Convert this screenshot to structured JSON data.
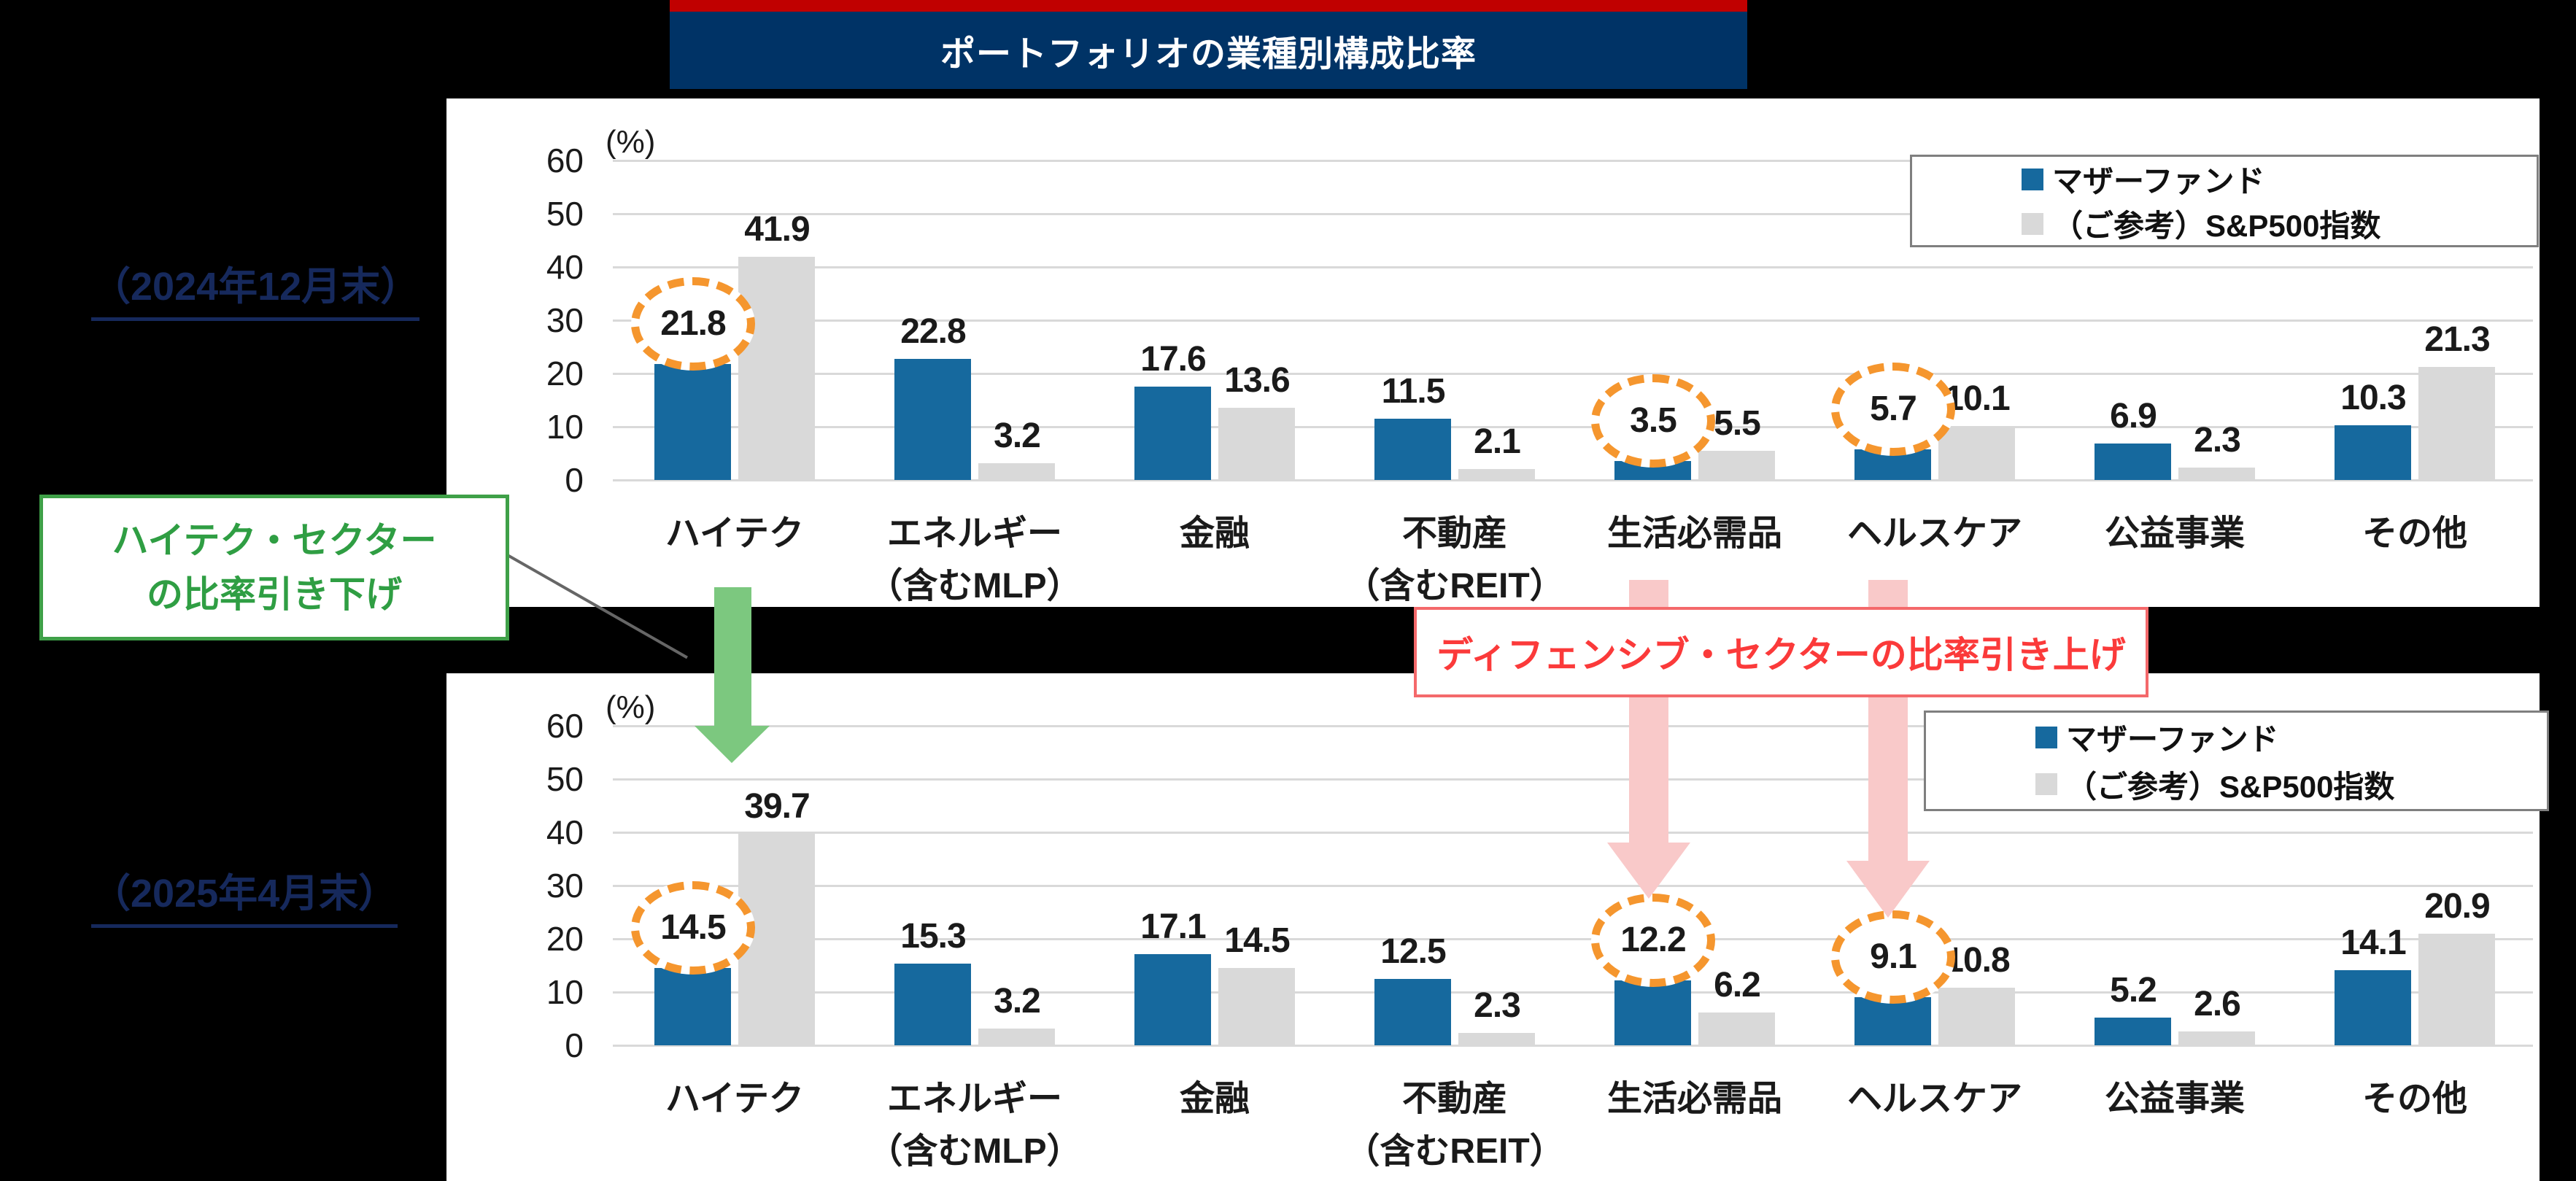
{
  "title": {
    "text": "ポートフォリオの業種別構成比率"
  },
  "y_axis": {
    "unit_label": "(%)",
    "ticks": [
      "60",
      "50",
      "40",
      "30",
      "20",
      "10",
      "0"
    ],
    "ylim": [
      0,
      60
    ],
    "grid": true
  },
  "legend": {
    "position": "top-right",
    "items": [
      {
        "label": "マザーファンド",
        "color": "#16699E"
      },
      {
        "label": "（ご参考）S&P500指数",
        "color": "#D9D9D9"
      }
    ]
  },
  "annotations": {
    "green_box_line1": "ハイテク・セクター",
    "green_box_line2": "の比率引き下げ",
    "pink_box": "ディフェンシブ・セクターの比率引き上げ"
  },
  "chart_data": [
    {
      "type": "bar",
      "period_label": "（2024年12月末）",
      "categories": [
        "ハイテク",
        "エネルギー\n（含むMLP）",
        "金融",
        "不動産\n（含むREIT）",
        "生活必需品",
        "ヘルスケア",
        "公益事業",
        "その他"
      ],
      "series": [
        {
          "name": "マザーファンド",
          "values": [
            21.8,
            22.8,
            17.6,
            11.5,
            3.5,
            5.7,
            6.9,
            10.3
          ]
        },
        {
          "name": "（ご参考）S&P500指数",
          "values": [
            41.9,
            3.2,
            13.6,
            2.1,
            5.5,
            10.1,
            2.3,
            21.3
          ]
        }
      ],
      "circled_category_indices": [
        0,
        4,
        5
      ],
      "xlabel": "",
      "ylabel": "(%)",
      "ylim": [
        0,
        60
      ]
    },
    {
      "type": "bar",
      "period_label": "（2025年4月末）",
      "categories": [
        "ハイテク",
        "エネルギー\n（含むMLP）",
        "金融",
        "不動産\n（含むREIT）",
        "生活必需品",
        "ヘルスケア",
        "公益事業",
        "その他"
      ],
      "series": [
        {
          "name": "マザーファンド",
          "values": [
            14.5,
            15.3,
            17.1,
            12.5,
            12.2,
            9.1,
            5.2,
            14.1
          ]
        },
        {
          "name": "（ご参考）S&P500指数",
          "values": [
            39.7,
            3.2,
            14.5,
            2.3,
            6.2,
            10.8,
            2.6,
            20.9
          ]
        }
      ],
      "circled_category_indices": [
        0,
        4,
        5
      ],
      "xlabel": "",
      "ylabel": "(%)",
      "ylim": [
        0,
        60
      ]
    }
  ],
  "colors": {
    "background": "#000000",
    "title_accent": "#C00000",
    "title_bg": "#003366",
    "title_fg": "#FFFFFF",
    "fund_bar": "#16699E",
    "index_bar": "#D9D9D9",
    "gridline": "#D9D9D9",
    "text": "#1A1A1A",
    "date_text": "#16295C",
    "circle_orange": "#F5962E",
    "green_border": "#3FA048",
    "green_text": "#2F9E43",
    "green_arrow": "#7CC87F",
    "pink_border": "#F4696B",
    "pink_text": "#FB3A3A",
    "pink_arrow": "#F9C9C9",
    "legend_border": "#7F7F7F",
    "leader_line": "#666666"
  }
}
